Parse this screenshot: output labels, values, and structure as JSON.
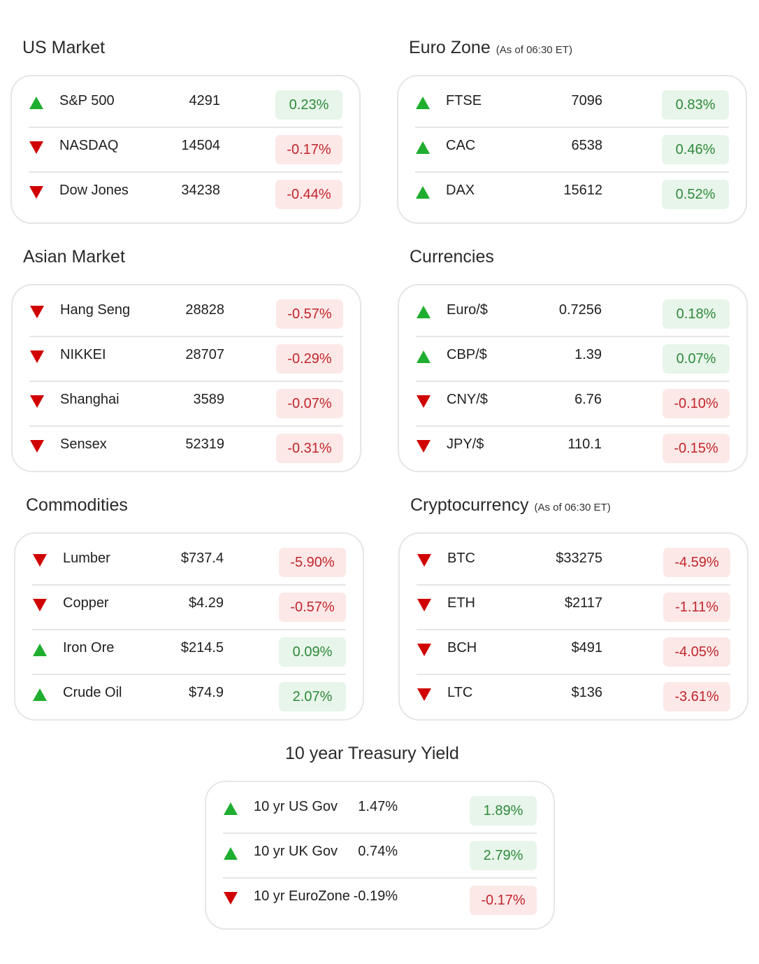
{
  "colors": {
    "up_arrow": "#1fae2f",
    "down_arrow": "#d10000",
    "up_text": "#2d8a3a",
    "up_bg": "#e8f5ea",
    "down_text": "#c0262b",
    "down_bg": "#fde8e8",
    "card_border": "#e6e6e6"
  },
  "sections": {
    "us": {
      "title": "US Market",
      "note": "",
      "rows": [
        {
          "name": "S&P 500",
          "value": "4291",
          "change": "0.23%",
          "dir": "up"
        },
        {
          "name": "NASDAQ",
          "value": "14504",
          "change": "-0.17%",
          "dir": "down"
        },
        {
          "name": "Dow Jones",
          "value": "34238",
          "change": "-0.44%",
          "dir": "down"
        }
      ]
    },
    "euro": {
      "title": "Euro Zone",
      "note": "(As of 06:30 ET)",
      "rows": [
        {
          "name": "FTSE",
          "value": "7096",
          "change": "0.83%",
          "dir": "up"
        },
        {
          "name": "CAC",
          "value": "6538",
          "change": "0.46%",
          "dir": "up"
        },
        {
          "name": "DAX",
          "value": "15612",
          "change": "0.52%",
          "dir": "up"
        }
      ]
    },
    "asia": {
      "title": "Asian Market",
      "note": "",
      "rows": [
        {
          "name": "Hang Seng",
          "value": "28828",
          "change": "-0.57%",
          "dir": "down"
        },
        {
          "name": "NIKKEI",
          "value": "28707",
          "change": "-0.29%",
          "dir": "down"
        },
        {
          "name": "Shanghai",
          "value": "3589",
          "change": "-0.07%",
          "dir": "down"
        },
        {
          "name": "Sensex",
          "value": "52319",
          "change": "-0.31%",
          "dir": "down"
        }
      ]
    },
    "currencies": {
      "title": "Currencies",
      "note": "",
      "rows": [
        {
          "name": "Euro/$",
          "value": "0.7256",
          "change": "0.18%",
          "dir": "up"
        },
        {
          "name": "CBP/$",
          "value": "1.39",
          "change": "0.07%",
          "dir": "up"
        },
        {
          "name": "CNY/$",
          "value": "6.76",
          "change": "-0.10%",
          "dir": "down"
        },
        {
          "name": "JPY/$",
          "value": "110.1",
          "change": "-0.15%",
          "dir": "down"
        }
      ]
    },
    "commodities": {
      "title": "Commodities",
      "note": "",
      "rows": [
        {
          "name": "Lumber",
          "value": "$737.4",
          "change": "-5.90%",
          "dir": "down"
        },
        {
          "name": "Copper",
          "value": "$4.29",
          "change": "-0.57%",
          "dir": "down"
        },
        {
          "name": "Iron Ore",
          "value": "$214.5",
          "change": "0.09%",
          "dir": "up"
        },
        {
          "name": "Crude Oil",
          "value": "$74.9",
          "change": "2.07%",
          "dir": "up"
        }
      ]
    },
    "crypto": {
      "title": "Cryptocurrency",
      "note": "(As of 06:30 ET)",
      "rows": [
        {
          "name": "BTC",
          "value": "$33275",
          "change": "-4.59%",
          "dir": "down"
        },
        {
          "name": "ETH",
          "value": "$2117",
          "change": "-1.11%",
          "dir": "down"
        },
        {
          "name": "BCH",
          "value": "$491",
          "change": "-4.05%",
          "dir": "down"
        },
        {
          "name": "LTC",
          "value": "$136",
          "change": "-3.61%",
          "dir": "down"
        }
      ]
    },
    "treasury": {
      "title": "10 year Treasury Yield",
      "note": "",
      "rows": [
        {
          "name": "10 yr US Gov",
          "value": "1.47%",
          "change": "1.89%",
          "dir": "up"
        },
        {
          "name": "10 yr UK Gov",
          "value": "0.74%",
          "change": "2.79%",
          "dir": "up"
        },
        {
          "name": "10 yr EuroZone",
          "value": "-0.19%",
          "change": "-0.17%",
          "dir": "down"
        }
      ]
    }
  }
}
